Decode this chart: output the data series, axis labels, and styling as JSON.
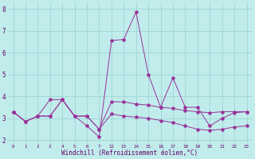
{
  "xlabel": "Windchill (Refroidissement éolien,°C)",
  "bg_color": "#c0ecec",
  "line_color": "#993399",
  "x_display": [
    "0",
    "1",
    "2",
    "3",
    "4",
    "5",
    "6",
    "7",
    "12",
    "13",
    "14",
    "15",
    "16",
    "17",
    "18",
    "19",
    "20",
    "21",
    "22",
    "23"
  ],
  "ylim": [
    1.85,
    8.3
  ],
  "yticks": [
    2,
    3,
    4,
    5,
    6,
    7,
    8
  ],
  "line1_y": [
    3.3,
    2.85,
    3.1,
    3.85,
    3.85,
    3.1,
    2.65,
    2.15,
    6.55,
    6.6,
    7.85,
    5.0,
    3.5,
    4.85,
    3.5,
    3.5,
    2.65,
    3.0,
    3.25,
    3.3
  ],
  "line2_y": [
    3.3,
    2.85,
    3.1,
    3.1,
    3.85,
    3.1,
    3.1,
    2.5,
    3.75,
    3.75,
    3.65,
    3.6,
    3.5,
    3.45,
    3.35,
    3.3,
    3.25,
    3.3,
    3.3,
    3.3
  ],
  "line3_y": [
    3.3,
    2.85,
    3.1,
    3.1,
    3.85,
    3.1,
    3.1,
    2.5,
    3.2,
    3.1,
    3.05,
    3.0,
    2.9,
    2.8,
    2.65,
    2.5,
    2.45,
    2.5,
    2.6,
    2.65
  ]
}
